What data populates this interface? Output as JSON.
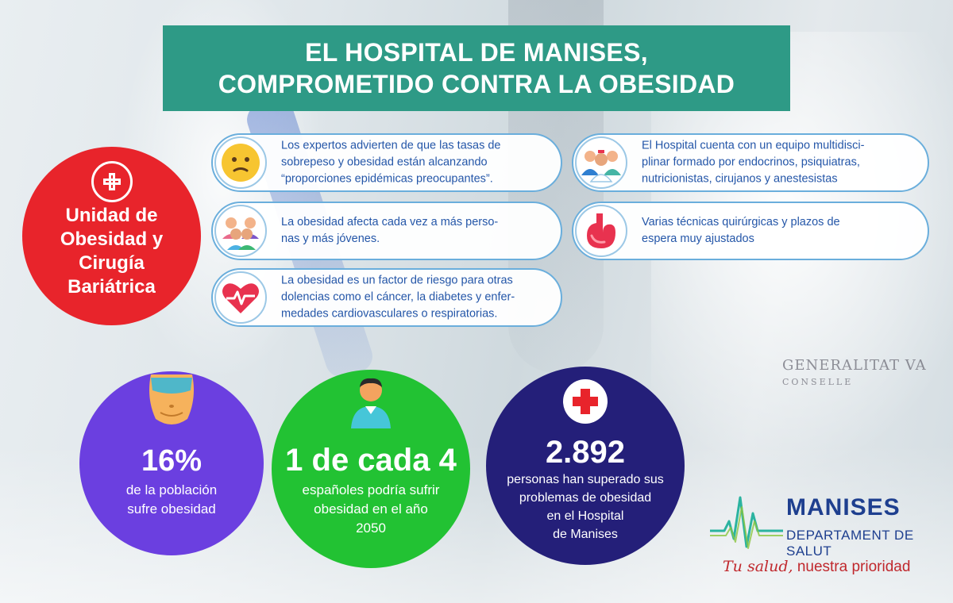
{
  "title": {
    "line1": "EL HOSPITAL DE MANISES,",
    "line2": "COMPROMETIDO CONTRA LA OBESIDAD"
  },
  "unit": {
    "line1": "Unidad de",
    "line2": "Obesidad y",
    "line3": "Cirugía",
    "line4": "Bariátrica",
    "icon": "medical-cross-icon"
  },
  "facts": {
    "f1": {
      "icon": "worried-face-icon",
      "line1": "Los expertos advierten de que las tasas de",
      "line2": "sobrepeso y obesidad están alcanzando",
      "line3": "“proporciones epidémicas preocupantes”."
    },
    "f2": {
      "icon": "young-people-group-icon",
      "line1": "La obesidad afecta cada vez a más perso-",
      "line2": "nas y más jóvenes."
    },
    "f3": {
      "icon": "heart-pulse-icon",
      "line1": "La obesidad es un factor de riesgo para otras",
      "line2": "dolencias como el cáncer, la diabetes y enfer-",
      "line3": "medades cardiovasculares o respiratorias."
    },
    "f4": {
      "icon": "medical-team-icon",
      "line1": "El Hospital cuenta con un equipo multidisci-",
      "line2": "plinar formado por endocrinos, psiquiatras,",
      "line3": "nutricionistas, cirujanos y anestesistas"
    },
    "f5": {
      "icon": "stomach-icon",
      "line1": "Varias técnicas quirúrgicas y plazos de",
      "line2": "espera muy ajustados"
    }
  },
  "stats": {
    "s1": {
      "icon": "belly-icon",
      "value": "16%",
      "line1": "de la población",
      "line2": "sufre obesidad",
      "color": "#6b3fe0"
    },
    "s2": {
      "icon": "person-icon",
      "value": "1 de cada 4",
      "line1": "españoles podría sufrir",
      "line2": "obesidad en el año",
      "line3": "2050",
      "color": "#22c233"
    },
    "s3": {
      "icon": "red-cross-icon",
      "value": "2.892",
      "line1": "personas han superado sus",
      "line2": "problemas de obesidad",
      "line3": "en el Hospital",
      "line4": "de Manises",
      "color": "#241f79"
    }
  },
  "background": {
    "badge_line1": "GENERALITAT VA",
    "badge_line2": "CONSELLE"
  },
  "logo": {
    "brand": "MANISES",
    "subtitle": "DEPARTAMENT DE SALUT",
    "slogan_script": "Tu salud,",
    "slogan_rest": "nuestra prioridad",
    "icon": "heartbeat-wave-icon"
  },
  "colors": {
    "title_bg": "#2e9a86",
    "unit_bg": "#e8242b",
    "pill_text": "#2456a8",
    "logo_blue": "#1e3f8f",
    "slogan_red": "#c0282d"
  }
}
